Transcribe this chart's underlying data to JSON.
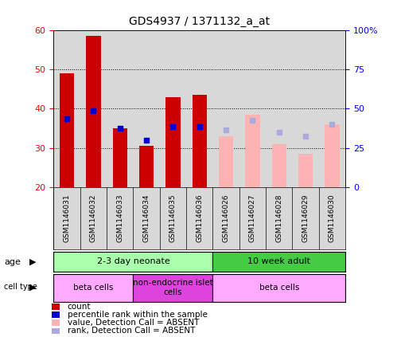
{
  "title": "GDS4937 / 1371132_a_at",
  "samples": [
    "GSM1146031",
    "GSM1146032",
    "GSM1146033",
    "GSM1146034",
    "GSM1146035",
    "GSM1146036",
    "GSM1146026",
    "GSM1146027",
    "GSM1146028",
    "GSM1146029",
    "GSM1146030"
  ],
  "present": [
    true,
    true,
    true,
    true,
    true,
    true,
    false,
    false,
    false,
    false,
    false
  ],
  "count_values": [
    49,
    58.5,
    35,
    30.5,
    43,
    43.5,
    33,
    38.5,
    31,
    28.5,
    36
  ],
  "rank_values": [
    37.5,
    39.5,
    35,
    32,
    35.5,
    35.5,
    34.5,
    37,
    34,
    33,
    36
  ],
  "ylim": [
    20,
    60
  ],
  "y2lim": [
    0,
    100
  ],
  "yticks": [
    20,
    30,
    40,
    50,
    60
  ],
  "y2ticks": [
    0,
    25,
    50,
    75,
    100
  ],
  "y2tick_labels": [
    "0",
    "25",
    "50",
    "75",
    "100%"
  ],
  "bar_color_present": "#cc0000",
  "bar_color_absent": "#ffb3b3",
  "rank_color_present": "#0000cc",
  "rank_color_absent": "#aaaadd",
  "bar_bottom": 20,
  "age_groups": [
    {
      "label": "2-3 day neonate",
      "start": 0,
      "end": 6,
      "color": "#aaffaa"
    },
    {
      "label": "10 week adult",
      "start": 6,
      "end": 11,
      "color": "#44cc44"
    }
  ],
  "cell_type_groups": [
    {
      "label": "beta cells",
      "start": 0,
      "end": 3,
      "color": "#ffaaff"
    },
    {
      "label": "non-endocrine islet\ncells",
      "start": 3,
      "end": 6,
      "color": "#dd44dd"
    },
    {
      "label": "beta cells",
      "start": 6,
      "end": 11,
      "color": "#ffaaff"
    }
  ],
  "legend_items": [
    {
      "label": "count",
      "color": "#cc0000"
    },
    {
      "label": "percentile rank within the sample",
      "color": "#0000cc"
    },
    {
      "label": "value, Detection Call = ABSENT",
      "color": "#ffb3b3"
    },
    {
      "label": "rank, Detection Call = ABSENT",
      "color": "#aaaadd"
    }
  ],
  "title_fontsize": 10,
  "tick_fontsize": 8,
  "xlabel_fontsize": 6.5,
  "plot_bg_color": "#d8d8d8",
  "fig_bg_color": "#ffffff"
}
